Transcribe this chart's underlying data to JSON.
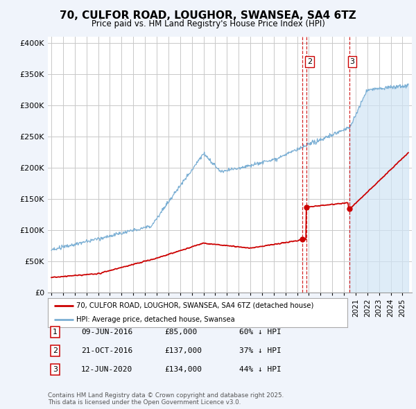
{
  "title": "70, CULFOR ROAD, LOUGHOR, SWANSEA, SA4 6TZ",
  "subtitle": "Price paid vs. HM Land Registry's House Price Index (HPI)",
  "ylim": [
    0,
    410000
  ],
  "yticks": [
    0,
    50000,
    100000,
    150000,
    200000,
    250000,
    300000,
    350000,
    400000
  ],
  "ytick_labels": [
    "£0",
    "£50K",
    "£100K",
    "£150K",
    "£200K",
    "£250K",
    "£300K",
    "£350K",
    "£400K"
  ],
  "hpi_color": "#7bafd4",
  "hpi_fill_color": "#d0e4f5",
  "price_color": "#cc0000",
  "vline_color": "#cc0000",
  "background_color": "#f0f4fb",
  "plot_bg_color": "#ffffff",
  "grid_color": "#c8c8c8",
  "xlim_start": 1994.7,
  "xlim_end": 2025.8,
  "x_start_year": 1995,
  "x_end_year": 2025,
  "trans1_x": 2016.44,
  "trans1_y": 85000,
  "trans2_x": 2016.8,
  "trans2_y": 137000,
  "trans3_x": 2020.44,
  "trans3_y": 134000,
  "transactions": [
    {
      "label": "1",
      "date": "09-JUN-2016",
      "price": "£85,000",
      "pct": "60% ↓ HPI"
    },
    {
      "label": "2",
      "date": "21-OCT-2016",
      "price": "£137,000",
      "pct": "37% ↓ HPI"
    },
    {
      "label": "3",
      "date": "12-JUN-2020",
      "price": "£134,000",
      "pct": "44% ↓ HPI"
    }
  ],
  "legend_entry1": "70, CULFOR ROAD, LOUGHOR, SWANSEA, SA4 6TZ (detached house)",
  "legend_entry2": "HPI: Average price, detached house, Swansea",
  "footer": "Contains HM Land Registry data © Crown copyright and database right 2025.\nThis data is licensed under the Open Government Licence v3.0."
}
